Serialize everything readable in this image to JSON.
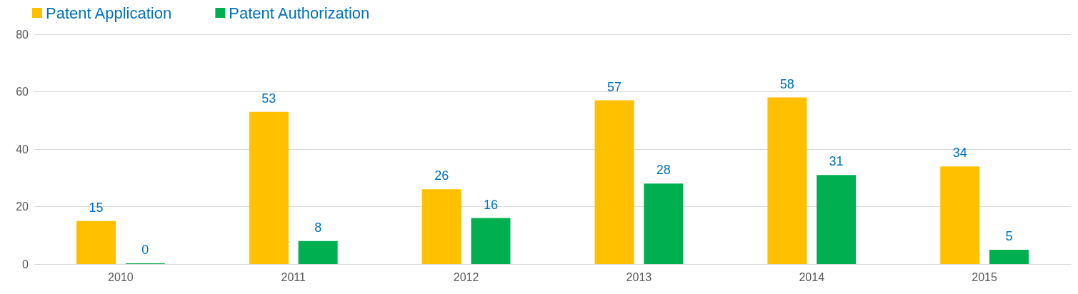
{
  "chart_data": {
    "type": "bar",
    "categories": [
      "2010",
      "2011",
      "2012",
      "2013",
      "2014",
      "2015"
    ],
    "series": [
      {
        "name": "Patent Application",
        "color": "#ffc000",
        "values": [
          15,
          53,
          26,
          57,
          58,
          34
        ]
      },
      {
        "name": "Patent Authorization",
        "color": "#00b050",
        "values": [
          0,
          8,
          16,
          28,
          31,
          5
        ]
      }
    ],
    "ylim": [
      0,
      80
    ],
    "yticks": [
      0,
      20,
      40,
      60,
      80
    ],
    "grid": "y",
    "legend": "top left",
    "data_labels": true
  }
}
